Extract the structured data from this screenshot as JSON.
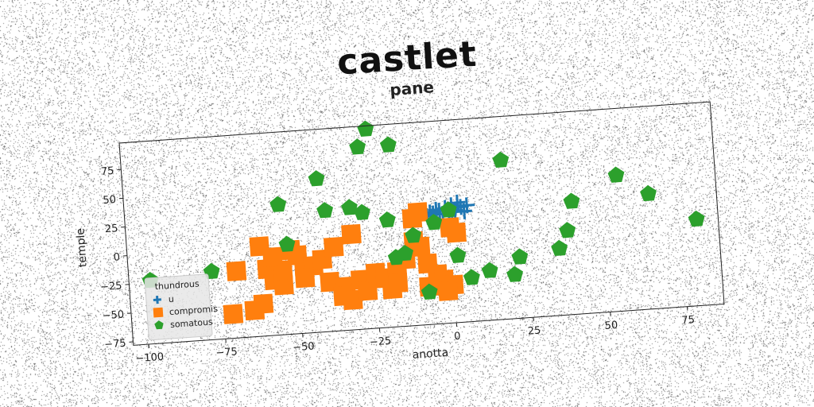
{
  "figure_title": "castlet",
  "chart_data": {
    "type": "scatter",
    "title": "pane",
    "xlabel": "anotta",
    "ylabel": "temple",
    "xlim": [
      -105,
      87
    ],
    "ylim": [
      -78,
      98
    ],
    "xticks": [
      -100,
      -75,
      -50,
      -25,
      0,
      25,
      50,
      75
    ],
    "yticks": [
      -75,
      -50,
      -25,
      0,
      25,
      50,
      75
    ],
    "grid": false,
    "legend": {
      "placement": "lower-left",
      "title": "thundrous",
      "entries": [
        "u",
        "compromis",
        "somatous"
      ]
    },
    "series": [
      {
        "name": "u",
        "marker": "plus",
        "color": "#1f77b4",
        "points": [
          [
            -7,
            16
          ],
          [
            -5,
            18
          ],
          [
            -3,
            20
          ],
          [
            -1,
            22
          ],
          [
            1,
            24
          ],
          [
            3,
            26
          ],
          [
            5,
            18
          ],
          [
            -2,
            17
          ],
          [
            2,
            19
          ],
          [
            -4,
            21
          ],
          [
            0,
            17
          ],
          [
            4,
            22
          ],
          [
            6,
            23
          ],
          [
            -6,
            19
          ],
          [
            1,
            20
          ]
        ]
      },
      {
        "name": "compromis",
        "marker": "square",
        "color": "#ff7f0e",
        "points": [
          [
            -70,
            -20
          ],
          [
            -72,
            -57
          ],
          [
            -62,
            0
          ],
          [
            -60,
            -20
          ],
          [
            -58,
            -30
          ],
          [
            -55,
            -35
          ],
          [
            -65,
            -55
          ],
          [
            -62,
            -50
          ],
          [
            -55,
            -22
          ],
          [
            -52,
            -5
          ],
          [
            -50,
            -10
          ],
          [
            -48,
            -25
          ],
          [
            -45,
            -20
          ],
          [
            -42,
            -15
          ],
          [
            -40,
            -35
          ],
          [
            -38,
            -5
          ],
          [
            -35,
            -40
          ],
          [
            -36,
            -48
          ],
          [
            -33,
            -52
          ],
          [
            -30,
            -35
          ],
          [
            -28,
            -45
          ],
          [
            -32,
            5
          ],
          [
            -25,
            -30
          ],
          [
            -22,
            -35
          ],
          [
            -20,
            -45
          ],
          [
            -18,
            -30
          ],
          [
            -15,
            -20
          ],
          [
            -12,
            -5
          ],
          [
            -10,
            -10
          ],
          [
            -8,
            -25
          ],
          [
            -5,
            -35
          ],
          [
            -3,
            -40
          ],
          [
            0,
            -45
          ],
          [
            -2,
            -50
          ],
          [
            -12,
            15
          ],
          [
            -10,
            20
          ],
          [
            0,
            5
          ],
          [
            2,
            0
          ],
          [
            -18,
            -40
          ],
          [
            -8,
            -45
          ],
          [
            -48,
            -30
          ],
          [
            -58,
            -10
          ]
        ]
      },
      {
        "name": "somatous",
        "marker": "pentagon",
        "color": "#2ca02c",
        "points": [
          [
            -98,
            -23
          ],
          [
            -78,
            -19
          ],
          [
            -55,
            35
          ],
          [
            -53,
            0
          ],
          [
            -42,
            55
          ],
          [
            -40,
            27
          ],
          [
            -32,
            28
          ],
          [
            -28,
            23
          ],
          [
            -28,
            80
          ],
          [
            -25,
            95
          ],
          [
            -18,
            80
          ],
          [
            -20,
            15
          ],
          [
            -18,
            -18
          ],
          [
            -15,
            -15
          ],
          [
            -12,
            0
          ],
          [
            -8,
            -50
          ],
          [
            -5,
            10
          ],
          [
            0,
            20
          ],
          [
            2,
            -20
          ],
          [
            6,
            -40
          ],
          [
            12,
            -35
          ],
          [
            18,
            60
          ],
          [
            20,
            -40
          ],
          [
            22,
            -25
          ],
          [
            35,
            -20
          ],
          [
            38,
            -5
          ],
          [
            40,
            20
          ],
          [
            55,
            40
          ],
          [
            65,
            22
          ],
          [
            80,
            -3
          ]
        ]
      }
    ]
  }
}
